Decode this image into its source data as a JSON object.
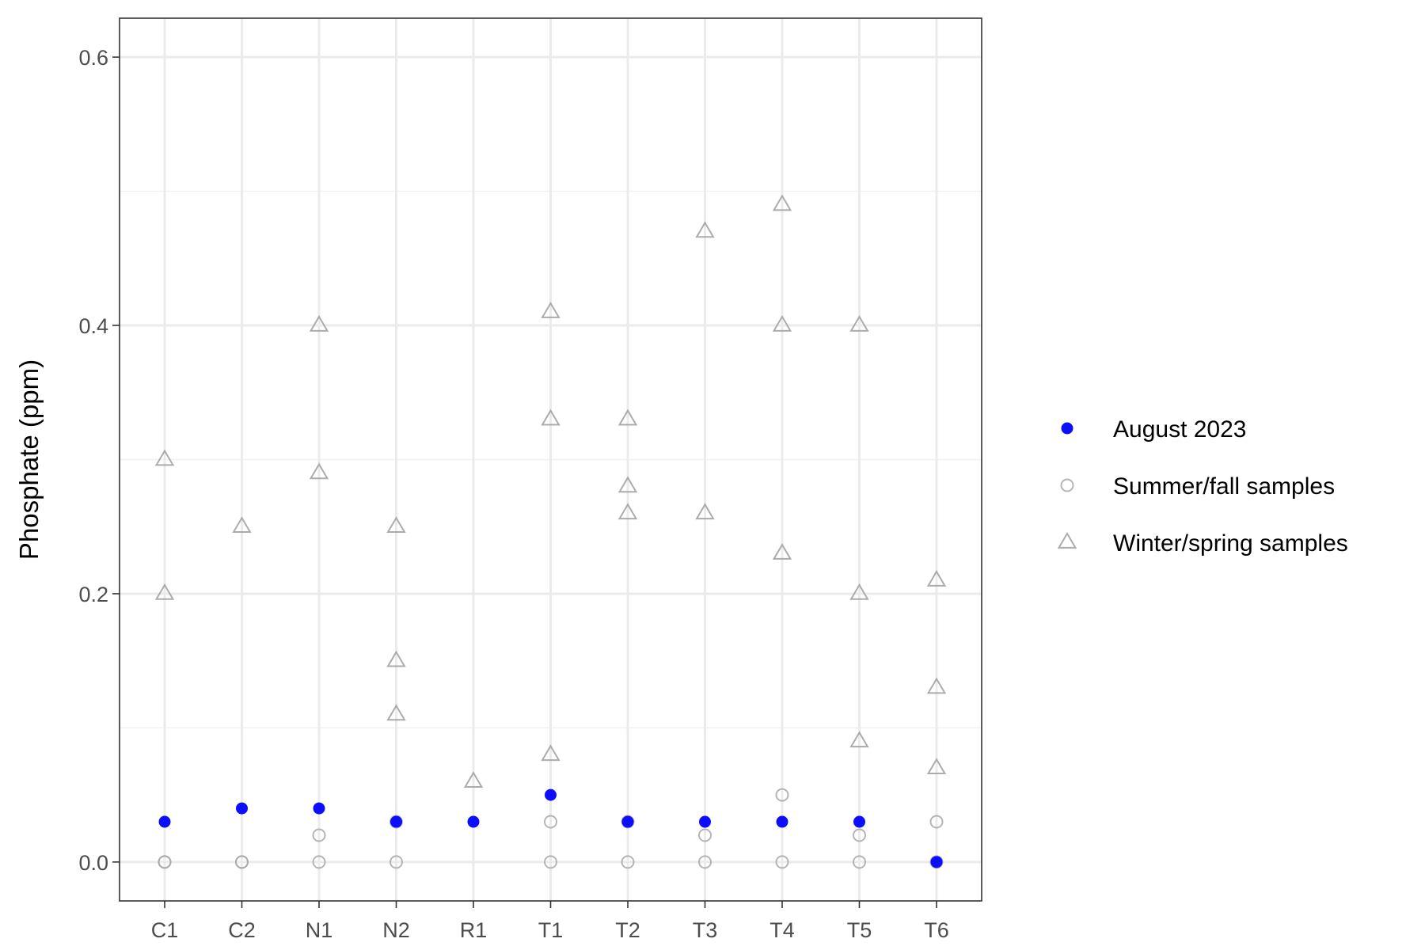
{
  "chart_data": {
    "type": "scatter",
    "title": "",
    "xlabel": "",
    "ylabel": "Phosphate (ppm)",
    "ylim": [
      -0.029,
      0.629
    ],
    "yticks": [
      0.0,
      0.2,
      0.4,
      0.6
    ],
    "ytick_labels": [
      "0.0",
      "0.2",
      "0.4",
      "0.6"
    ],
    "categories": [
      "C1",
      "C2",
      "N1",
      "N2",
      "R1",
      "T1",
      "T2",
      "T3",
      "T4",
      "T5",
      "T6"
    ],
    "grid": true,
    "legend_position": "right",
    "series": [
      {
        "name": "Winter/spring samples",
        "marker": "open-triangle",
        "color": "#9e9e9e",
        "points": [
          {
            "x": "C1",
            "y": 0.3
          },
          {
            "x": "C1",
            "y": 0.2
          },
          {
            "x": "C2",
            "y": 0.25
          },
          {
            "x": "N1",
            "y": 0.4
          },
          {
            "x": "N1",
            "y": 0.29
          },
          {
            "x": "N2",
            "y": 0.25
          },
          {
            "x": "N2",
            "y": 0.15
          },
          {
            "x": "N2",
            "y": 0.11
          },
          {
            "x": "R1",
            "y": 0.06
          },
          {
            "x": "T1",
            "y": 0.41
          },
          {
            "x": "T1",
            "y": 0.33
          },
          {
            "x": "T1",
            "y": 0.08
          },
          {
            "x": "T2",
            "y": 0.33
          },
          {
            "x": "T2",
            "y": 0.28
          },
          {
            "x": "T2",
            "y": 0.26
          },
          {
            "x": "T3",
            "y": 0.47
          },
          {
            "x": "T3",
            "y": 0.26
          },
          {
            "x": "T4",
            "y": 0.49
          },
          {
            "x": "T4",
            "y": 0.4
          },
          {
            "x": "T4",
            "y": 0.23
          },
          {
            "x": "T5",
            "y": 0.4
          },
          {
            "x": "T5",
            "y": 0.2
          },
          {
            "x": "T5",
            "y": 0.09
          },
          {
            "x": "T6",
            "y": 0.21
          },
          {
            "x": "T6",
            "y": 0.13
          },
          {
            "x": "T6",
            "y": 0.07
          }
        ]
      },
      {
        "name": "Summer/fall samples",
        "marker": "open-circle",
        "color": "#a8a8a8",
        "points": [
          {
            "x": "C1",
            "y": 0.0
          },
          {
            "x": "C1",
            "y": 0.0
          },
          {
            "x": "C2",
            "y": 0.0
          },
          {
            "x": "C2",
            "y": 0.0
          },
          {
            "x": "N1",
            "y": 0.02
          },
          {
            "x": "N1",
            "y": 0.0
          },
          {
            "x": "N2",
            "y": 0.03
          },
          {
            "x": "N2",
            "y": 0.0
          },
          {
            "x": "T1",
            "y": 0.03
          },
          {
            "x": "T1",
            "y": 0.0
          },
          {
            "x": "T2",
            "y": 0.03
          },
          {
            "x": "T2",
            "y": 0.0
          },
          {
            "x": "T3",
            "y": 0.02
          },
          {
            "x": "T3",
            "y": 0.0
          },
          {
            "x": "T4",
            "y": 0.05
          },
          {
            "x": "T4",
            "y": 0.0
          },
          {
            "x": "T5",
            "y": 0.02
          },
          {
            "x": "T5",
            "y": 0.0
          },
          {
            "x": "T6",
            "y": 0.03
          },
          {
            "x": "T6",
            "y": 0.0
          }
        ]
      },
      {
        "name": "August 2023",
        "marker": "filled-circle",
        "color": "#0000ff",
        "points": [
          {
            "x": "C1",
            "y": 0.03
          },
          {
            "x": "C2",
            "y": 0.04
          },
          {
            "x": "N1",
            "y": 0.04
          },
          {
            "x": "N2",
            "y": 0.03
          },
          {
            "x": "R1",
            "y": 0.03
          },
          {
            "x": "T1",
            "y": 0.05
          },
          {
            "x": "T2",
            "y": 0.03
          },
          {
            "x": "T3",
            "y": 0.03
          },
          {
            "x": "T4",
            "y": 0.03
          },
          {
            "x": "T5",
            "y": 0.03
          },
          {
            "x": "T6",
            "y": 0.0
          }
        ]
      }
    ],
    "legend": [
      {
        "label": "August 2023",
        "marker": "filled-circle",
        "color": "#0000ff"
      },
      {
        "label": "Summer/fall samples",
        "marker": "open-circle",
        "color": "#a8a8a8"
      },
      {
        "label": "Winter/spring samples",
        "marker": "open-triangle",
        "color": "#9e9e9e"
      }
    ]
  }
}
